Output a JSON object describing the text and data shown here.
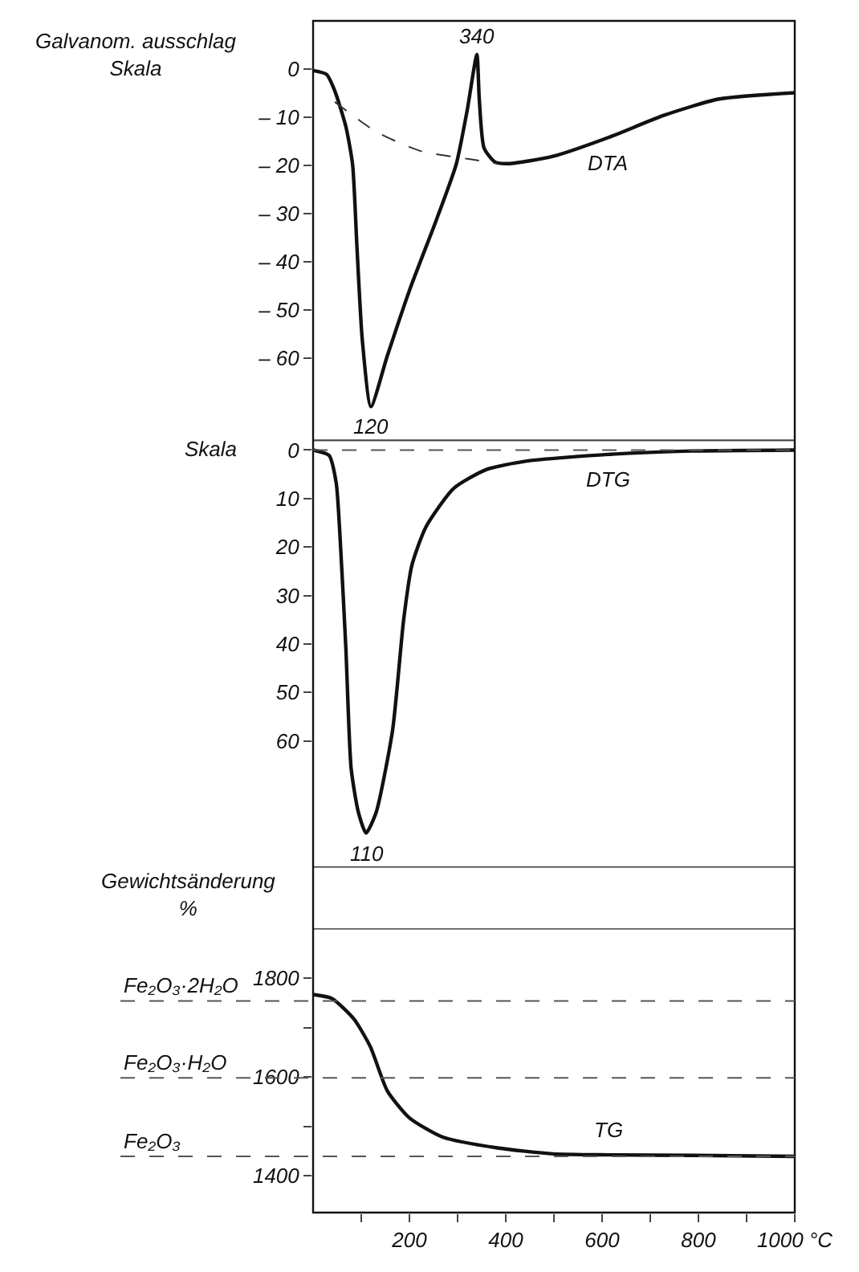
{
  "chart_data": [
    {
      "type": "line",
      "ylabel": "Galvanom. ausschlag\nSkala",
      "xlim": [
        0,
        1000
      ],
      "tick_labels": "y",
      "grid": false,
      "ylim": [
        -77,
        10
      ],
      "yticks": [
        0,
        {
          "value": -10,
          "label": "– 10"
        },
        {
          "value": -20,
          "label": "– 20"
        },
        {
          "value": -30,
          "label": "– 30"
        },
        {
          "value": -40,
          "label": "– 40"
        },
        {
          "value": -50,
          "label": "– 50"
        },
        {
          "value": -60,
          "label": "– 60"
        }
      ],
      "series": [
        {
          "name": "DTA",
          "color": "#111111",
          "line_style": "solid",
          "x": [
            0,
            28,
            45,
            68,
            82,
            91,
            102,
            120,
            154,
            200,
            257,
            297,
            320,
            340,
            345,
            355,
            378,
            406,
            498,
            613,
            728,
            843,
            1000
          ],
          "values": [
            -0.3,
            -1.1,
            -4.5,
            -11.9,
            -19.8,
            -36.8,
            -56,
            -70,
            -59.5,
            -45.9,
            -31,
            -19.8,
            -8.5,
            3,
            -6.2,
            -16.4,
            -19.3,
            -19.6,
            -18.1,
            -14.2,
            -9.6,
            -6.2,
            -4.9
          ]
        },
        {
          "color": "#333333",
          "line_style": "dashed",
          "x": [
            45,
            131,
            223,
            326,
            383
          ],
          "values": [
            -6.8,
            -13,
            -17,
            -18.7,
            -19.6
          ]
        }
      ],
      "annotations": [
        {
          "text": "340",
          "x": 340,
          "y": 3
        },
        {
          "text": "120",
          "x": 120,
          "y": -70
        }
      ]
    },
    {
      "type": "line",
      "ylabel": "Skala",
      "xlim": [
        0,
        1000
      ],
      "tick_labels": "y",
      "grid": false,
      "ylim": [
        86,
        -2
      ],
      "yticks": [
        0,
        10,
        20,
        30,
        40,
        50,
        60
      ],
      "series": [
        {
          "name": "DTG",
          "color": "#111111",
          "line_style": "solid",
          "x": [
            0,
            33,
            48,
            56,
            68,
            79,
            94,
            110,
            131,
            165,
            188,
            205,
            234,
            292,
            360,
            441,
            613,
            785,
            1000
          ],
          "values": [
            0,
            1.1,
            6.8,
            18,
            40.8,
            65.7,
            74.7,
            79,
            74.7,
            57.8,
            35,
            23.8,
            15.9,
            7.9,
            4,
            2.3,
            0.9,
            0.2,
            0
          ]
        }
      ],
      "ref_lines": [
        {
          "axis": "y",
          "value": 0,
          "label": null,
          "line_style": "dashed",
          "color": "#555555"
        }
      ],
      "annotations": [
        {
          "text": "110",
          "x": 110,
          "y": 79
        }
      ]
    },
    {
      "type": "line",
      "ylabel": "Gewichtsänderung\n%",
      "xlim": [
        0,
        1000
      ],
      "grid": false,
      "xticks": [
        {
          "value": 100,
          "label": null
        },
        200,
        {
          "value": 300,
          "label": null
        },
        400,
        {
          "value": 500,
          "label": null
        },
        600,
        {
          "value": 700,
          "label": null
        },
        800,
        {
          "value": 900,
          "label": null
        },
        {
          "value": 1000,
          "label": "1000 °C"
        }
      ],
      "ylim": [
        1325,
        1900
      ],
      "yticks": [
        1400,
        {
          "value": 1500,
          "label": null
        },
        1600,
        {
          "value": 1700,
          "label": null
        },
        1800
      ],
      "series": [
        {
          "name": "TG",
          "color": "#111111",
          "line_style": "solid",
          "x": [
            0,
            39,
            85,
            119,
            154,
            200,
            269,
            383,
            498,
            613,
            785,
            1000
          ],
          "values": [
            1767,
            1759,
            1717,
            1661,
            1572,
            1517,
            1478,
            1456,
            1444,
            1442,
            1441,
            1439
          ]
        }
      ],
      "ref_lines": [
        {
          "axis": "y",
          "value": 1754,
          "label": "Fe₂O₃·2H₂O",
          "line_style": "dashed",
          "color": "#555555"
        },
        {
          "axis": "y",
          "value": 1598,
          "label": "Fe₂O₃·H₂O",
          "line_style": "dashed",
          "color": "#555555"
        },
        {
          "axis": "y",
          "value": 1439,
          "label": "Fe₂O₃",
          "line_style": "dashed",
          "color": "#555555"
        }
      ]
    }
  ]
}
